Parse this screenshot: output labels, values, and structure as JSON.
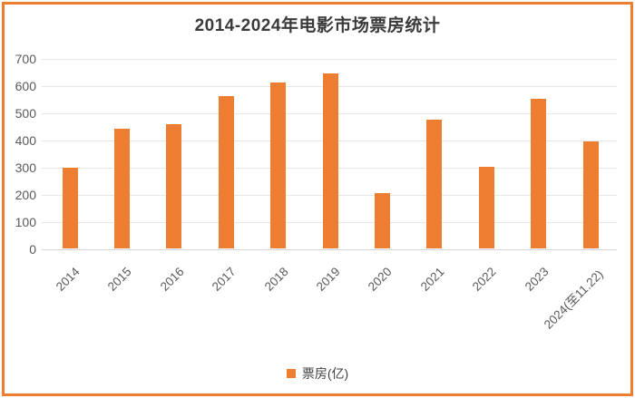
{
  "chart_data": {
    "type": "bar",
    "title": "2014-2024年电影市场票房统计",
    "categories": [
      "2014",
      "2015",
      "2016",
      "2017",
      "2018",
      "2019",
      "2020",
      "2021",
      "2022",
      "2023",
      "2024(至11.22)"
    ],
    "values": [
      296,
      441,
      457,
      559,
      610,
      643,
      204,
      473,
      301,
      549,
      395
    ],
    "series_name": "票房(亿)",
    "xlabel": "",
    "ylabel": "",
    "ylim": [
      0,
      700
    ],
    "yticks": [
      0,
      100,
      200,
      300,
      400,
      500,
      600,
      700
    ],
    "grid": true,
    "bar_color": "#ED7D31",
    "frame_border_color": "#ED7D31",
    "gridline_color": "#E7E7E7",
    "axis_line_color": "#D6D6D6",
    "title_color": "#3A3A3A",
    "tick_label_color": "#595959",
    "legend": {
      "position": "bottom",
      "items": [
        {
          "label": "票房(亿)",
          "color": "#ED7D31"
        }
      ]
    }
  }
}
